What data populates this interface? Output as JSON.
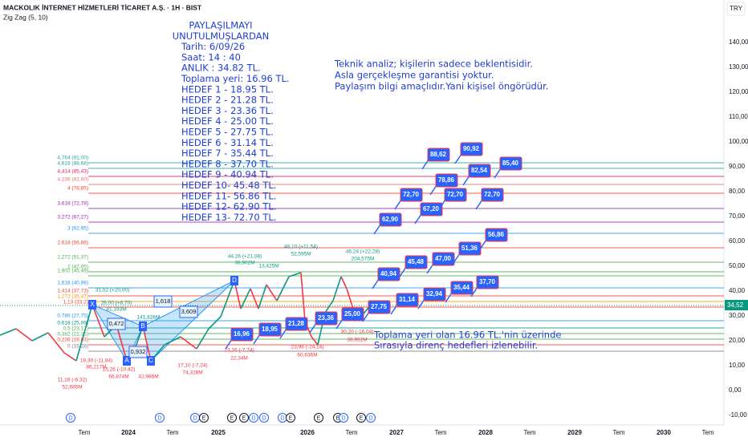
{
  "header": {
    "symbol": "MACKOLIK İNTERNET HİZMETLERİ TİCARET A.Ş. · 1H · BIST",
    "indicator": "Zig Zag (5, 10)"
  },
  "currency": "TRY",
  "last_price": "34,52",
  "price_axis": [
    "140,00",
    "130,00",
    "120,00",
    "110,00",
    "100,00",
    "90,00",
    "80,00",
    "70,00",
    "60,00",
    "50,00",
    "40,00",
    "30,00",
    "20,00",
    "10,00",
    "0,00",
    "-10,00"
  ],
  "time_axis": [
    "Tem",
    "2024",
    "Tem",
    "2025",
    "2026",
    "Tem",
    "2027",
    "Tem",
    "2028",
    "Tem",
    "2029",
    "Tem",
    "2030",
    "Tem"
  ],
  "share_note": [
    "PAYLAŞILMAYI",
    "UNUTULMUŞLARDAN",
    "Tarih:    6/09/26",
    "Saat:      14 : 40",
    "ANLIK :  34.82 TL.",
    "Toplama yeri: 16.96 TL.",
    "HEDEF   1 - 18.95 TL.",
    "HEDEF   2 - 21.28 TL.",
    "HEDEF   3 - 23.36 TL.",
    "HEDEF   4 - 25.00 TL.",
    "HEDEF   5 - 27.75 TL.",
    "HEDEF   6 - 31.14 TL.",
    "HEDEF   7 - 35.44 TL.",
    "HEDEF   8 - 37.70 TL.",
    "HEDEF   9 - 40.94 TL.",
    "HEDEF  10- 45.48 TL.",
    "HEDEF  11- 56.86 TL.",
    "HEDEF  12- 62.90 TL.",
    "HEDEF  13- 72.70 TL."
  ],
  "disclaimer": [
    "Teknik analiz; kişilerin sadece beklentisidir.",
    "Asla gerçekleşme garantisi yoktur.",
    "Paylaşım bilgi amaçlıdır.Yani kişisel öngörüdür."
  ],
  "bottom_note": [
    "Toplama yeri olan 16.96 TL.'nin üzerinde",
    "Sırasıyla direnç hedefleri izlenebilir."
  ],
  "targets": [
    "16,96",
    "18,95",
    "21,28",
    "23,36",
    "25,00",
    "27,75",
    "31,14",
    "32,94",
    "35,44",
    "37,70",
    "40,94",
    "45,48",
    "47,00",
    "51,36",
    "56,86",
    "62,90",
    "67,20",
    "72,70",
    "72,70",
    "72,70",
    "78,86",
    "82,54",
    "85,40",
    "88,62",
    "90,92"
  ],
  "fib_levels": [
    {
      "label": "4,764 (91,00)",
      "color": "#26a69a"
    },
    {
      "label": "4,618 (88,68)",
      "color": "#26a69a"
    },
    {
      "label": "4,414 (85,43)",
      "color": "#e91e63"
    },
    {
      "label": "4,236 (82,60)",
      "color": "#e57373"
    },
    {
      "label": "4 (78,85)",
      "color": "#f44336"
    },
    {
      "label": "3,618 (72,78)",
      "color": "#9c27b0"
    },
    {
      "label": "3,272 (67,27)",
      "color": "#9c27b0"
    },
    {
      "label": "3 (62,95)",
      "color": "#2196f3"
    },
    {
      "label": "2,618 (56,88)",
      "color": "#f44336"
    },
    {
      "label": "2,272 (51,37)",
      "color": "#4caf50"
    },
    {
      "label": "2 (47,05)",
      "color": "#4caf50"
    },
    {
      "label": "1,902 (45,49)",
      "color": "#4caf50"
    },
    {
      "label": "1,618 (40,98)",
      "color": "#2196f3"
    },
    {
      "label": "1,414 (37,73)",
      "color": "#f44336"
    },
    {
      "label": "1,272 (35,47)",
      "color": "#ff9800"
    },
    {
      "label": "1,13 (33,2)",
      "color": "#f44336"
    },
    {
      "label": "0,786 (27,75)",
      "color": "#2196f3"
    },
    {
      "label": "0,618 (25,09)",
      "color": "#009688"
    },
    {
      "label": "0,5 (23,17)",
      "color": "#4caf50"
    },
    {
      "label": "0,382 (21,35)",
      "color": "#4caf50"
    },
    {
      "label": "0,236 (19,03)",
      "color": "#f44336"
    },
    {
      "label": "0 (15,28)",
      "color": "#787b86"
    }
  ],
  "pattern_points": [
    "X",
    "A",
    "B",
    "C",
    "D"
  ],
  "pattern_ratios": [
    "0,472",
    "1,618",
    "3,609",
    "0,932"
  ],
  "zigzag_labels": [
    "11,16 (-6,32)",
    "52,685M",
    "19,30 (-11,84)",
    "86,217M",
    "15,26 (-10,42)",
    "66,874M",
    "42,986M",
    "17,10 (-7,24)",
    "74,328M",
    "26,00 (+8,70)",
    "81,193M",
    "141,826M",
    "31,02 (+20,00)",
    "44,26 (+21,08)",
    "38,902M",
    "13,425M",
    "48,10 (+11,54)",
    "52,595M",
    "46,24 (+22,28)",
    "204,575M",
    "23,26 (-7,74)",
    "22,34M",
    "23,96 (-24,14)",
    "60,636M",
    "30,20 (-16,04)",
    "38,962M"
  ],
  "events": [
    "D",
    "D",
    "D",
    "E",
    "E",
    "E",
    "D",
    "D",
    "D",
    "E",
    "E",
    "E",
    "D",
    "E",
    "D"
  ]
}
